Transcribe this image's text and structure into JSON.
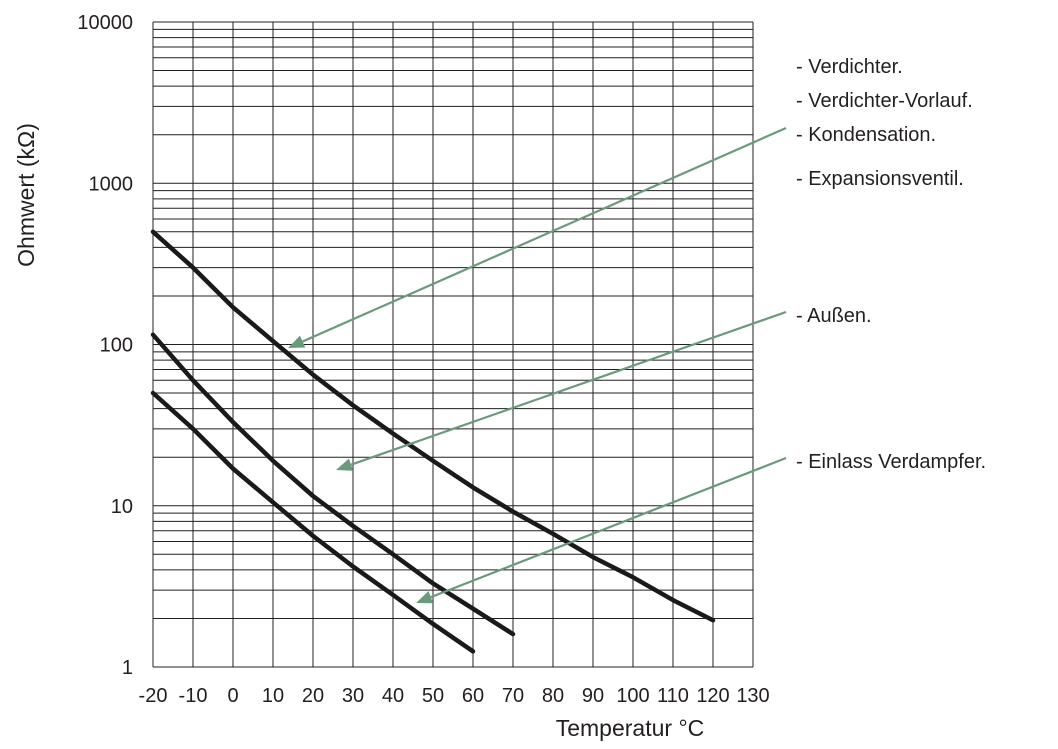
{
  "chart_data": {
    "type": "line",
    "title": "",
    "xlabel": "Temperatur °C",
    "ylabel": "Ohmwert  (kΩ)",
    "xlim": [
      -20,
      130
    ],
    "ylim": [
      1,
      10000
    ],
    "yscale": "log",
    "grid": true,
    "x_ticks": [
      -20,
      -10,
      0,
      10,
      20,
      30,
      40,
      50,
      60,
      70,
      80,
      90,
      100,
      110,
      120,
      130
    ],
    "y_ticks": [
      1,
      10,
      100,
      1000,
      10000
    ],
    "x_tick_labels": [
      "-20",
      "-10",
      "0",
      "10",
      "20",
      "30",
      "40",
      "50",
      "60",
      "70",
      "80",
      "90",
      "100",
      "110",
      "120",
      "130"
    ],
    "y_tick_labels": [
      "1",
      "10",
      "100",
      "1000",
      "10000"
    ],
    "series": [
      {
        "labels": [
          "- Verdichter.",
          "- Verdichter-Vorlauf.",
          "- Kondensation.",
          "- Expansionsventil."
        ],
        "color": "#1a1a1a",
        "x": [
          -20,
          -10,
          0,
          10,
          20,
          30,
          40,
          50,
          60,
          70,
          80,
          90,
          100,
          110,
          120
        ],
        "y": [
          500,
          300,
          170,
          105,
          65,
          42,
          28,
          19,
          13,
          9.2,
          6.7,
          4.8,
          3.6,
          2.6,
          1.95
        ]
      },
      {
        "labels": [
          "- Außen."
        ],
        "color": "#1a1a1a",
        "x": [
          -20,
          -10,
          0,
          10,
          20,
          30,
          40,
          50,
          60,
          70
        ],
        "y": [
          115,
          60,
          33,
          19,
          11.5,
          7.5,
          5,
          3.3,
          2.3,
          1.6
        ]
      },
      {
        "labels": [
          "- Einlass Verdampfer."
        ],
        "color": "#1a1a1a",
        "x": [
          -20,
          -10,
          0,
          10,
          20,
          30,
          40,
          50,
          60
        ],
        "y": [
          50,
          30,
          17,
          10.5,
          6.5,
          4.2,
          2.8,
          1.85,
          1.25
        ]
      }
    ],
    "annotation_color": "#6a9a7a",
    "legend_placement": "right"
  }
}
